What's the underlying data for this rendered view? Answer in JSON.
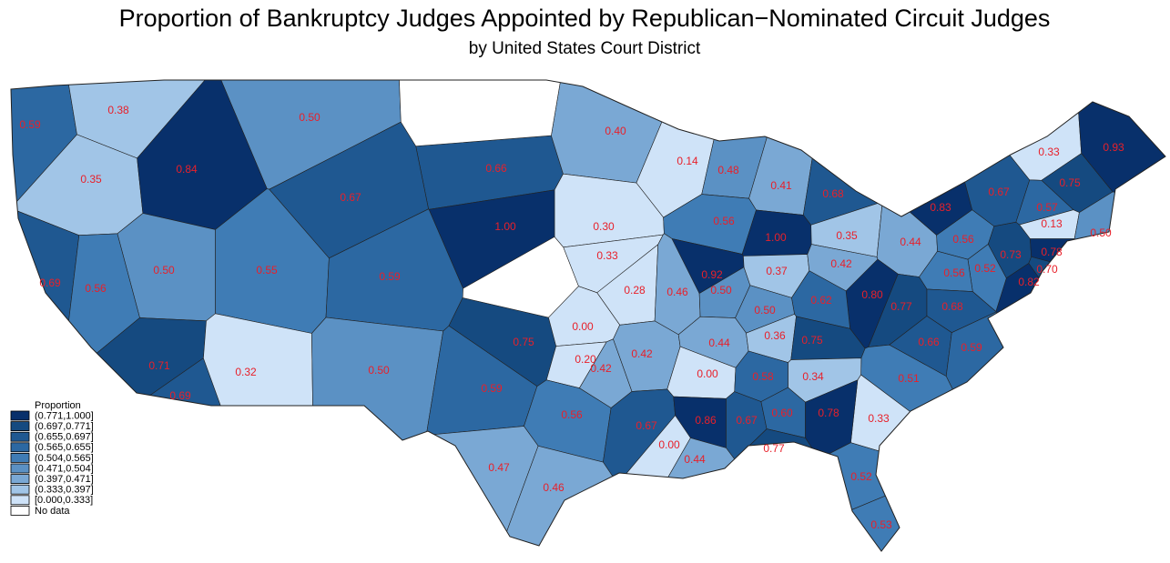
{
  "chart_data": {
    "type": "choropleth",
    "title": "Proportion of Bankruptcy Judges Appointed by Republican−Nominated Circuit Judges",
    "subtitle": "by United States Court District",
    "values": [
      0.59,
      0.38,
      0.5,
      0.35,
      0.84,
      0.66,
      0.4,
      0.67,
      0.14,
      0.48,
      0.41,
      0.68,
      0.3,
      0.33,
      1,
      0.56,
      0.92,
      1,
      0.35,
      0.44,
      0.56,
      0.73,
      0.83,
      0.67,
      0.33,
      0.75,
      0.93,
      0.57,
      0.13,
      0.5,
      0.78,
      0.7,
      0.82,
      0.52,
      0.56,
      0.8,
      0.77,
      0.68,
      0.5,
      0.55,
      0.59,
      0.69,
      0.56,
      0.71,
      0.69,
      0.32,
      0.5,
      0.28,
      0.46,
      0.5,
      0.37,
      0.42,
      0.62,
      0.5,
      0.75,
      0,
      0.2,
      0.42,
      0.42,
      0.44,
      0.36,
      0.75,
      0.66,
      0.59,
      0.51,
      0.34,
      0.33,
      0,
      0.58,
      0.59,
      0.56,
      0.67,
      0.86,
      0.67,
      0.6,
      0.78,
      0,
      0.44,
      0.77,
      0.47,
      0.46,
      0.52,
      0.53
    ],
    "value_labels": [
      "0.59",
      "0.38",
      "0.50",
      "0.35",
      "0.84",
      "0.66",
      "0.40",
      "0.67",
      "0.14",
      "0.48",
      "0.41",
      "0.68",
      "0.30",
      "0.33",
      "1.00",
      "0.56",
      "0.92",
      "1.00",
      "0.35",
      "0.44",
      "0.56",
      "0.73",
      "0.83",
      "0.67",
      "0.33",
      "0.75",
      "0.93",
      "0.57",
      "0.13",
      "0.50",
      "0.78",
      "0.70",
      "0.82",
      "0.52",
      "0.56",
      "0.80",
      "0.77",
      "0.68",
      "0.50",
      "0.55",
      "0.59",
      "0.69",
      "0.56",
      "0.71",
      "0.69",
      "0.32",
      "0.50",
      "0.28",
      "0.46",
      "0.50",
      "0.37",
      "0.42",
      "0.62",
      "0.50",
      "0.75",
      "0.00",
      "0.20",
      "0.42",
      "0.42",
      "0.44",
      "0.36",
      "0.75",
      "0.66",
      "0.59",
      "0.51",
      "0.34",
      "0.33",
      "0.00",
      "0.58",
      "0.59",
      "0.56",
      "0.67",
      "0.86",
      "0.67",
      "0.60",
      "0.78",
      "0.00",
      "0.44",
      "0.77",
      "0.47",
      "0.46",
      "0.52",
      "0.53"
    ],
    "label_color": "#e8202a",
    "legend": {
      "title": "Proportion",
      "bins": [
        {
          "label": "(0.771,1.000]",
          "min": 0.771,
          "max": 1,
          "color": "#08306b"
        },
        {
          "label": "(0.697,0.771]",
          "min": 0.697,
          "max": 0.771,
          "color": "#154a80"
        },
        {
          "label": "(0.655,0.697]",
          "min": 0.655,
          "max": 0.697,
          "color": "#1f5891"
        },
        {
          "label": "(0.565,0.655]",
          "min": 0.565,
          "max": 0.655,
          "color": "#2c68a2"
        },
        {
          "label": "(0.504,0.565]",
          "min": 0.504,
          "max": 0.565,
          "color": "#3f7cb5"
        },
        {
          "label": "(0.471,0.504]",
          "min": 0.471,
          "max": 0.504,
          "color": "#5b91c4"
        },
        {
          "label": "(0.397,0.471]",
          "min": 0.397,
          "max": 0.471,
          "color": "#7aa8d4"
        },
        {
          "label": "(0.333,0.397]",
          "min": 0.333,
          "max": 0.397,
          "color": "#a1c5e7"
        },
        {
          "label": "[0.000,0.333]",
          "min": 0,
          "max": 0.333,
          "color": "#cfe3f8"
        },
        {
          "label": "No data",
          "color": "#ffffff"
        }
      ]
    }
  }
}
